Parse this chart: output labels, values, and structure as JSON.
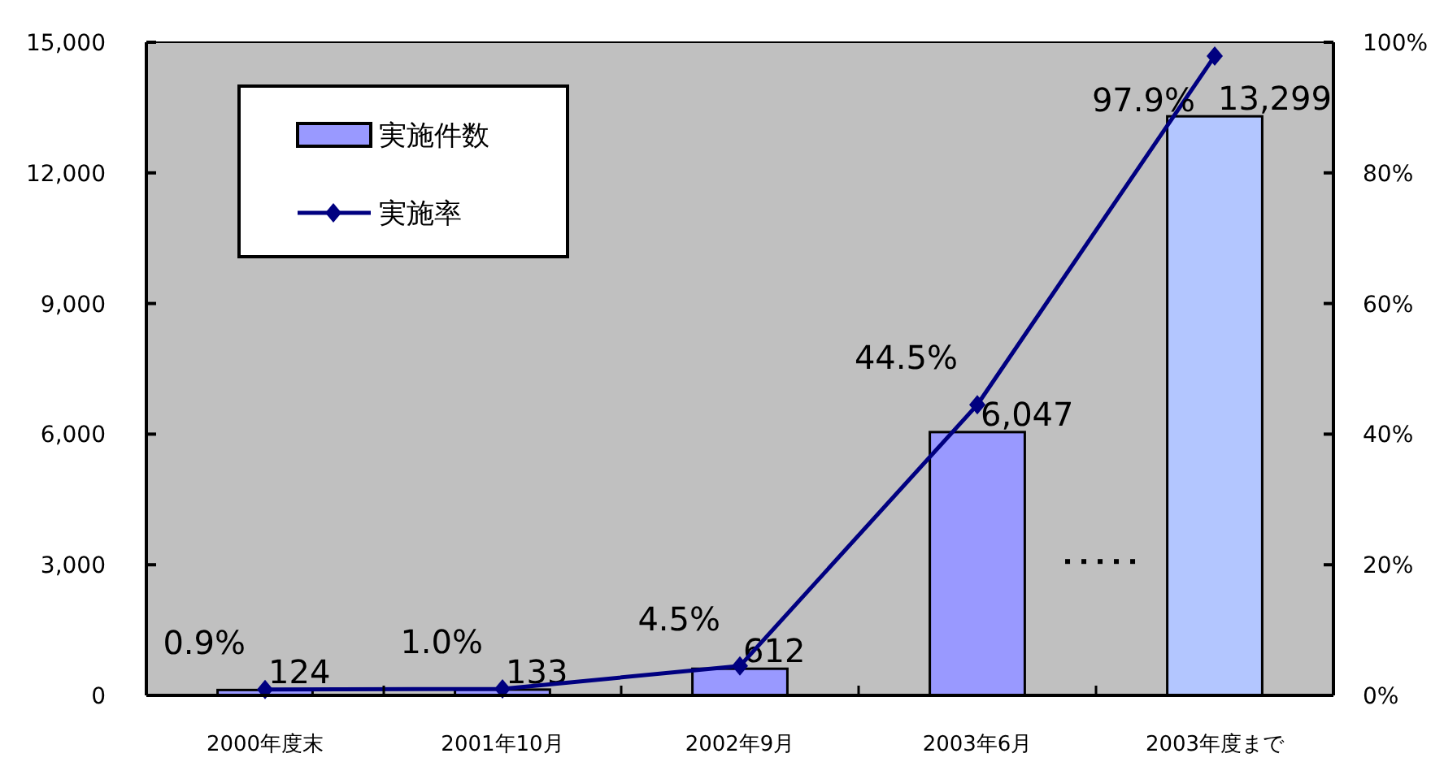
{
  "chart_data": {
    "type": "bar",
    "categories": [
      "2000年度末",
      "2001年10月",
      "2002年9月",
      "2003年6月",
      "2003年度まで"
    ],
    "series": [
      {
        "name": "実施件数",
        "colors": [
          "#9999ff",
          "#9999ff",
          "#9999ff",
          "#9999ff",
          "#b3c6ff"
        ],
        "values": [
          124,
          133,
          612,
          6047,
          13299
        ],
        "value_labels": [
          "124",
          "133",
          "612",
          "6,047",
          "13,299"
        ]
      },
      {
        "name": "実施率",
        "type": "line",
        "axis": "y2",
        "color": "#000080",
        "values": [
          0.9,
          1.0,
          4.5,
          44.5,
          97.9
        ],
        "value_labels": [
          "0.9%",
          "1.0%",
          "4.5%",
          "44.5%",
          "97.9%"
        ]
      }
    ],
    "ylim": [
      0,
      15000
    ],
    "yticks": [
      {
        "value": 0,
        "label": "0"
      },
      {
        "value": 3000,
        "label": "3,000"
      },
      {
        "value": 6000,
        "label": "6,000"
      },
      {
        "value": 9000,
        "label": "9,000"
      },
      {
        "value": 12000,
        "label": "12,000"
      },
      {
        "value": 15000,
        "label": "15,000"
      }
    ],
    "y2lim": [
      0,
      100
    ],
    "y2ticks": [
      {
        "value": 0,
        "label": "0%"
      },
      {
        "value": 20,
        "label": "20%"
      },
      {
        "value": 40,
        "label": "40%"
      },
      {
        "value": 60,
        "label": "60%"
      },
      {
        "value": 80,
        "label": "80%"
      },
      {
        "value": 100,
        "label": "100%"
      }
    ],
    "marker": "diamond",
    "legend": "top left",
    "grid": false
  }
}
